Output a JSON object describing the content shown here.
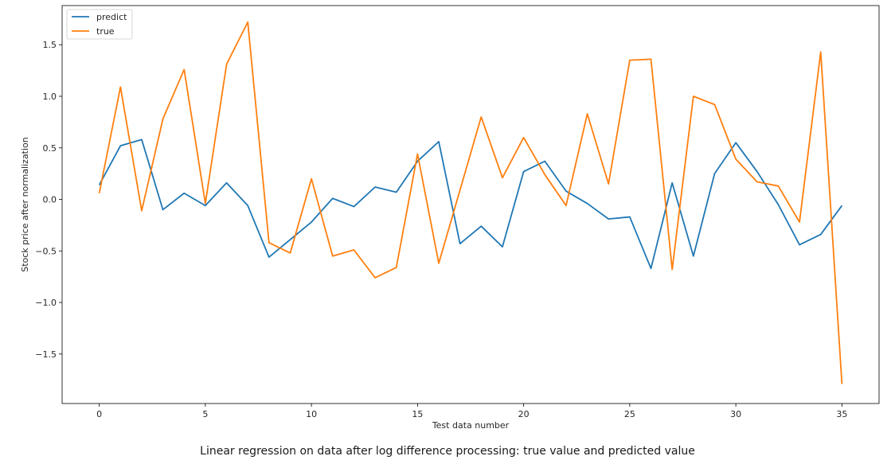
{
  "caption": "Linear regression on data after log difference processing: true value and predicted value",
  "chart_data": {
    "type": "line",
    "title": "",
    "xlabel": "Test data number",
    "ylabel": "Stock price after normalization",
    "xlim": [
      -1.75,
      36.75
    ],
    "ylim": [
      -1.98,
      1.88
    ],
    "xticks": [
      0,
      5,
      10,
      15,
      20,
      25,
      30,
      35
    ],
    "yticks": [
      -1.5,
      -1.0,
      -0.5,
      0.0,
      0.5,
      1.0,
      1.5
    ],
    "xtick_labels": [
      "0",
      "5",
      "10",
      "15",
      "20",
      "25",
      "30",
      "35"
    ],
    "ytick_labels": [
      "−1.5",
      "−1.0",
      "−0.5",
      "0.0",
      "0.5",
      "1.0",
      "1.5"
    ],
    "legend_position": "top-left",
    "x": [
      0,
      1,
      2,
      3,
      4,
      5,
      6,
      7,
      8,
      9,
      10,
      11,
      12,
      13,
      14,
      15,
      16,
      17,
      18,
      19,
      20,
      21,
      22,
      23,
      24,
      25,
      26,
      27,
      28,
      29,
      30,
      31,
      32,
      33,
      34,
      35
    ],
    "series": [
      {
        "name": "predict",
        "color": "#1f77b4",
        "values": [
          0.14,
          0.52,
          0.58,
          -0.1,
          0.06,
          -0.06,
          0.16,
          -0.06,
          -0.56,
          -0.39,
          -0.22,
          0.01,
          -0.07,
          0.12,
          0.07,
          0.37,
          0.56,
          -0.43,
          -0.26,
          -0.46,
          0.27,
          0.37,
          0.08,
          -0.04,
          -0.19,
          -0.17,
          -0.67,
          0.16,
          -0.55,
          0.25,
          0.55,
          0.27,
          -0.05,
          -0.44,
          -0.34,
          -0.06
        ]
      },
      {
        "name": "true",
        "color": "#ff7f0e",
        "values": [
          0.06,
          1.09,
          -0.11,
          0.78,
          1.26,
          -0.04,
          1.31,
          1.72,
          -0.42,
          -0.52,
          0.2,
          -0.55,
          -0.49,
          -0.76,
          -0.66,
          0.44,
          -0.62,
          0.09,
          0.8,
          0.21,
          0.6,
          0.24,
          -0.06,
          0.83,
          0.15,
          1.35,
          1.36,
          -0.68,
          1.0,
          0.92,
          0.39,
          0.17,
          0.13,
          -0.22,
          1.43,
          -1.79
        ]
      }
    ]
  }
}
